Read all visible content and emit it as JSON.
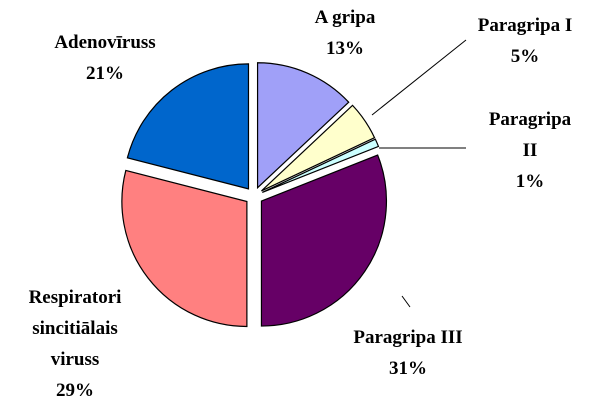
{
  "chart_data": {
    "type": "pie",
    "categories": [
      "A gripa",
      "Paragripa I",
      "Paragripa II",
      "Paragripa III",
      "Respiratori sincitiālais viruss",
      "Adenovīruss"
    ],
    "values": [
      13,
      5,
      1,
      31,
      29,
      21
    ],
    "value_labels": [
      "13%",
      "5%",
      "1%",
      "31%",
      "29%",
      "21%"
    ],
    "colors": [
      "#a0a0f8",
      "#ffffcc",
      "#ccffff",
      "#660066",
      "#ff8080",
      "#0066cc"
    ]
  }
}
